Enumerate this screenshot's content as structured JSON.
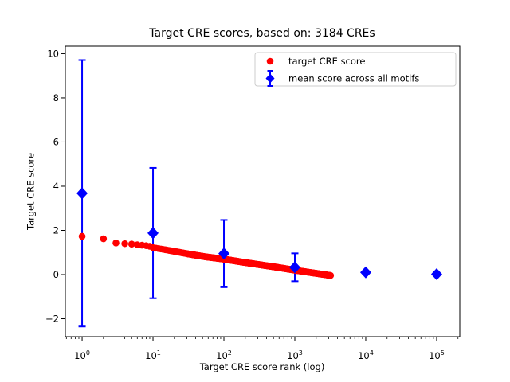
{
  "chart_data": {
    "type": "scatter",
    "title": "Target CRE scores, based on: 3184 CREs",
    "xlabel": "Target CRE score rank (log)",
    "ylabel": "Target CRE score",
    "x_scale": "log",
    "y_scale": "linear",
    "xlim": [
      0.58,
      212000
    ],
    "ylim": [
      -2.81,
      10.34
    ],
    "x_tick_exponents": [
      0,
      1,
      2,
      3,
      4,
      5
    ],
    "y_ticks": [
      -2,
      0,
      2,
      4,
      6,
      8,
      10
    ],
    "grid": false,
    "legend_position": "upper right",
    "total_cres": 3184,
    "series": [
      {
        "name": "target CRE score",
        "marker": "circle",
        "color": "#ff0000",
        "total_points": 3184,
        "sampled": true,
        "points": [
          [
            1,
            1.73
          ],
          [
            2,
            1.62
          ],
          [
            3,
            1.43
          ],
          [
            4,
            1.4
          ],
          [
            5,
            1.38
          ],
          [
            6,
            1.35
          ],
          [
            7,
            1.33
          ],
          [
            8,
            1.31
          ],
          [
            9,
            1.28
          ],
          [
            10,
            1.22
          ],
          [
            18,
            1.08
          ],
          [
            32,
            0.93
          ],
          [
            56,
            0.8
          ],
          [
            100,
            0.7
          ],
          [
            178,
            0.57
          ],
          [
            316,
            0.45
          ],
          [
            562,
            0.33
          ],
          [
            1000,
            0.2
          ],
          [
            1778,
            0.08
          ],
          [
            2512,
            0.01
          ],
          [
            3184,
            -0.04
          ]
        ]
      },
      {
        "name": "mean score across all motifs",
        "marker": "diamond",
        "color": "#0000ff",
        "error": "std",
        "points": [
          [
            1,
            3.68,
            6.03
          ],
          [
            10,
            1.88,
            2.95
          ],
          [
            100,
            0.95,
            1.52
          ],
          [
            1000,
            0.33,
            0.63
          ],
          [
            10000,
            0.1,
            0.05
          ],
          [
            100000,
            0.02,
            0.02
          ]
        ]
      }
    ]
  }
}
